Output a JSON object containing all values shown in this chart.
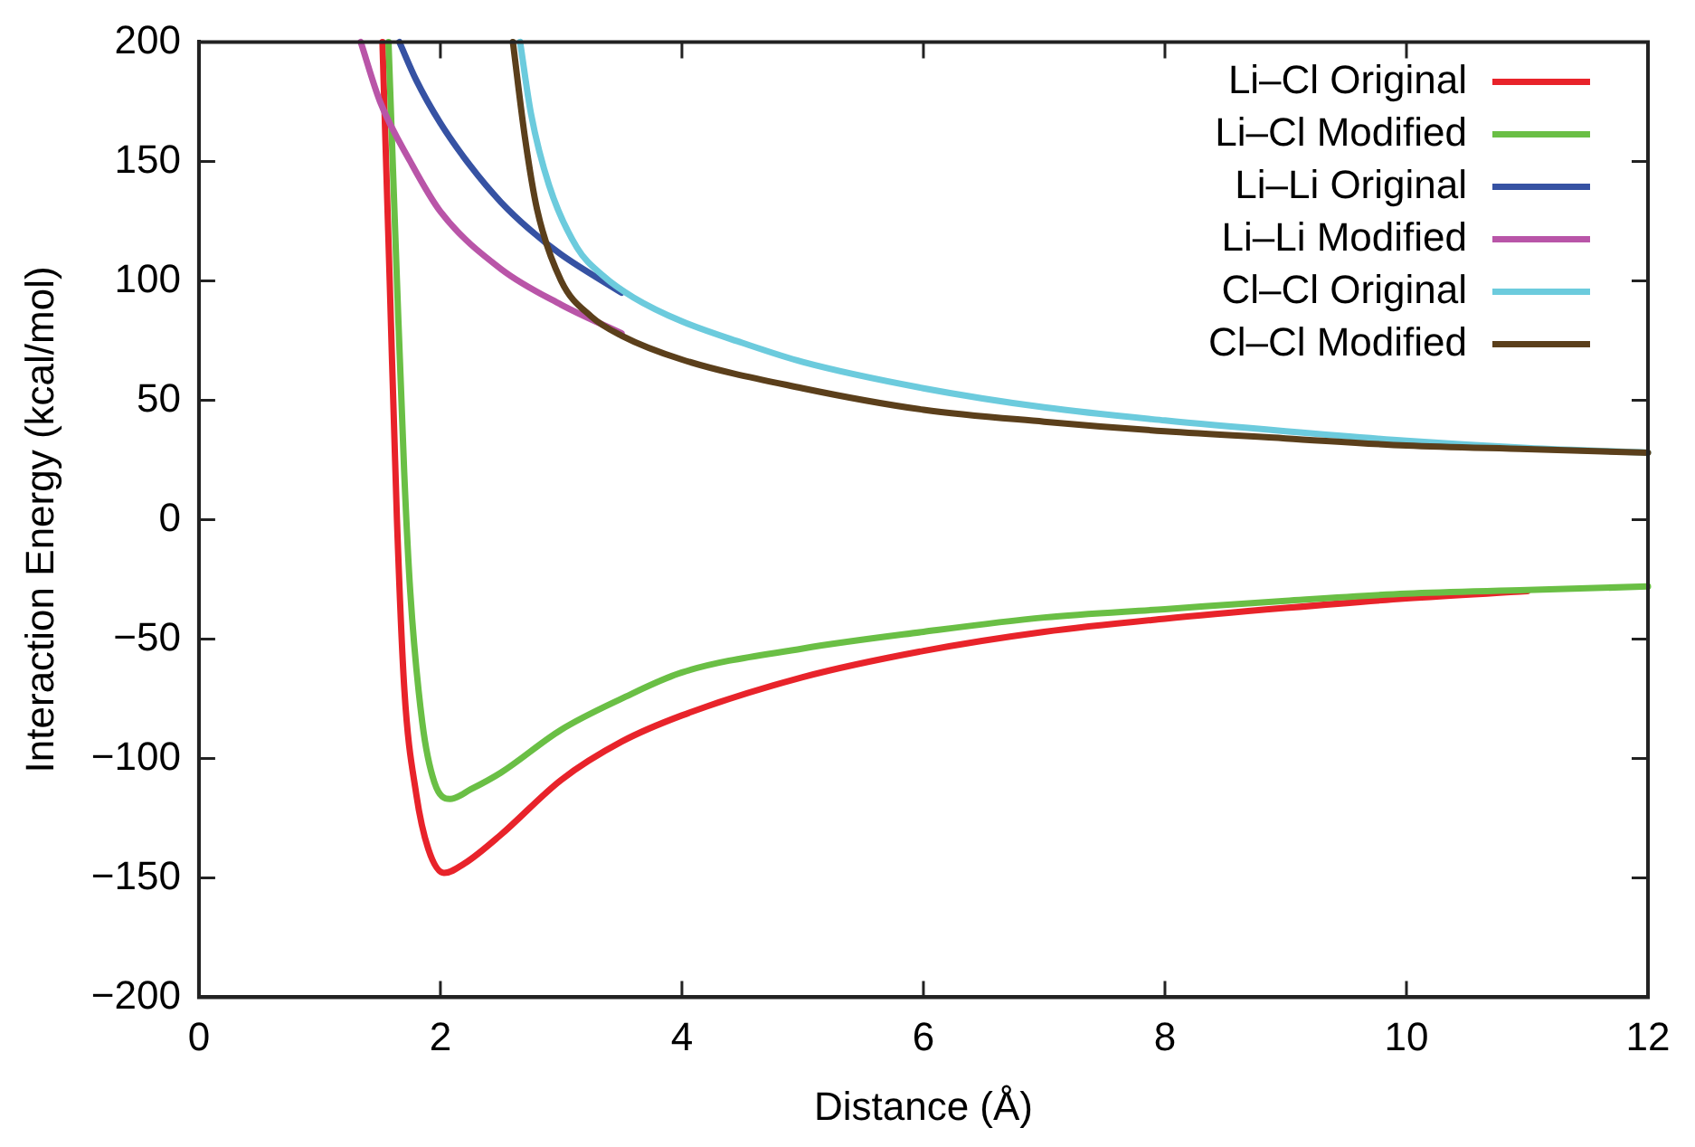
{
  "chart_data": {
    "type": "line",
    "xlabel": "Distance (Å)",
    "ylabel": "Interaction Energy (kcal/mol)",
    "xlim": [
      0,
      12
    ],
    "xticks": [
      0,
      2,
      4,
      6,
      8,
      10,
      12
    ],
    "ylim": [
      -200,
      200
    ],
    "yticks": [
      -200,
      -150,
      -100,
      -50,
      0,
      50,
      100,
      150,
      200
    ],
    "grid": false,
    "legend": "top right",
    "marker": "none",
    "line_style": "solid",
    "series": [
      {
        "name": "Li–Cl Original",
        "color": "#e8232a",
        "x": [
          1.52,
          1.58,
          1.64,
          1.7,
          1.8,
          1.9,
          2.03,
          2.2,
          2.5,
          3,
          3.5,
          4,
          5,
          6,
          7,
          8,
          9,
          10,
          11
        ],
        "values": [
          200,
          100,
          0,
          -70,
          -115,
          -138,
          -148,
          -144,
          -132,
          -109,
          -93,
          -82,
          -66,
          -55,
          -47,
          -41.5,
          -37,
          -33,
          -30
        ]
      },
      {
        "name": "Li–Cl Modified",
        "color": "#6abf45",
        "x": [
          1.57,
          1.64,
          1.7,
          1.75,
          1.85,
          1.95,
          2.08,
          2.25,
          2.5,
          3,
          3.5,
          4,
          5,
          6,
          7,
          8,
          9,
          10,
          11,
          12
        ],
        "values": [
          200,
          100,
          20,
          -30,
          -85,
          -110,
          -117,
          -113,
          -106,
          -88,
          -75,
          -64,
          -54,
          -47,
          -41,
          -37.5,
          -34,
          -31,
          -29.5,
          -28
        ]
      },
      {
        "name": "Li–Li Original",
        "color": "#3652a3",
        "x": [
          1.66,
          1.8,
          2,
          2.25,
          2.5,
          2.75,
          3,
          3.5
        ],
        "values": [
          200,
          184,
          166,
          148,
          133,
          121,
          111,
          95
        ]
      },
      {
        "name": "Li–Li Modified",
        "color": "#b955a8",
        "x": [
          1.34,
          1.5,
          1.75,
          2,
          2.5,
          3,
          3.5
        ],
        "values": [
          200,
          175,
          150,
          129,
          105,
          90,
          78
        ]
      },
      {
        "name": "Cl–Cl Original",
        "color": "#6ccbdd",
        "x": [
          2.66,
          2.75,
          2.9,
          3.13,
          3.35,
          3.6,
          4,
          4.5,
          5,
          6,
          7,
          8,
          9,
          10,
          11,
          12
        ],
        "values": [
          200,
          170,
          140,
          114,
          102,
          93,
          83,
          74,
          66,
          55,
          47,
          41.5,
          37,
          33,
          30,
          28
        ]
      },
      {
        "name": "Cl–Cl Modified",
        "color": "#5b3f1b",
        "x": [
          2.6,
          2.7,
          2.8,
          3,
          3.25,
          3.5,
          4,
          5,
          6,
          7,
          8,
          9,
          10,
          11,
          12
        ],
        "values": [
          200,
          160,
          130,
          100,
          85,
          77,
          67,
          55,
          46,
          41,
          37,
          34,
          31,
          29.5,
          28
        ]
      }
    ]
  }
}
